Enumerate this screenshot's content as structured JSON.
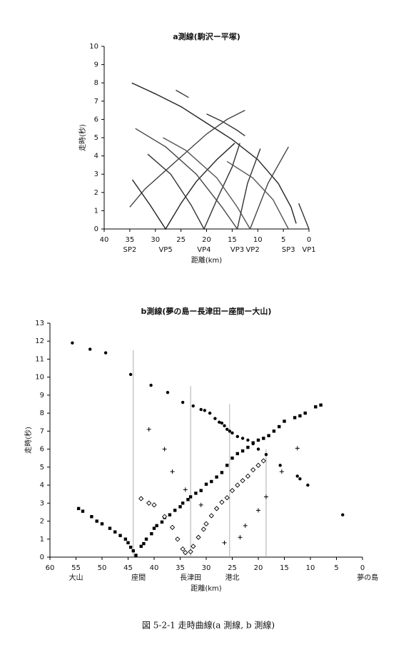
{
  "chart_data": [
    {
      "type": "line",
      "title": "a測線(駒沢ー平塚)",
      "x_label": "距離(km)",
      "y_label": "走時(秒)",
      "xlim": [
        40,
        0
      ],
      "xticks": [
        40,
        35,
        30,
        25,
        20,
        15,
        10,
        5,
        0
      ],
      "ylim": [
        0,
        10
      ],
      "yticks": [
        0,
        1,
        2,
        3,
        4,
        5,
        6,
        7,
        8,
        9,
        10
      ],
      "annotations": [
        {
          "text": "SP2",
          "x": 35
        },
        {
          "text": "VP5",
          "x": 28
        },
        {
          "text": "VP4",
          "x": 20.5
        },
        {
          "text": "VP3",
          "x": 14
        },
        {
          "text": "VP2",
          "x": 11
        },
        {
          "text": "SP3",
          "x": 4
        },
        {
          "text": "VP1",
          "x": 0
        }
      ],
      "series": [
        {
          "color": "#222",
          "x": [
            34.6,
            30,
            25,
            20,
            15,
            10,
            6,
            3.5,
            2.5
          ],
          "values": [
            8.0,
            7.4,
            6.7,
            5.8,
            4.9,
            3.8,
            2.5,
            1.2,
            0.3
          ]
        },
        {
          "color": "#333",
          "x": [
            26,
            23.5,
            null,
            20,
            17,
            14,
            12.5
          ],
          "values": [
            7.6,
            7.2,
            null,
            6.3,
            5.9,
            5.4,
            5.1
          ]
        },
        {
          "color": "#444",
          "x": [
            35,
            32,
            28,
            24,
            20,
            16,
            12.5
          ],
          "values": [
            1.2,
            2.2,
            3.2,
            4.2,
            5.2,
            6.0,
            6.5
          ]
        },
        {
          "color": "#222",
          "x": [
            34.5,
            31,
            28,
            25,
            22,
            18,
            14.5
          ],
          "values": [
            2.7,
            1.3,
            0,
            1.4,
            2.6,
            3.8,
            4.7
          ]
        },
        {
          "color": "#333",
          "x": [
            31.5,
            27,
            23,
            20.5,
            18,
            15,
            13.5
          ],
          "values": [
            4.1,
            3.0,
            1.3,
            0,
            1.6,
            3.4,
            4.7
          ]
        },
        {
          "color": "#444",
          "x": [
            33.9,
            28,
            22,
            17,
            14
          ],
          "values": [
            5.5,
            4.5,
            3.0,
            1.2,
            0
          ]
        },
        {
          "color": "#555",
          "x": [
            28.5,
            24,
            18,
            14,
            11.5
          ],
          "values": [
            5.0,
            4.3,
            2.8,
            1.2,
            0
          ]
        },
        {
          "color": "#333",
          "x": [
            14,
            12,
            9.5
          ],
          "values": [
            0,
            2.5,
            4.4
          ]
        },
        {
          "color": "#444",
          "x": [
            11.5,
            8,
            4
          ],
          "values": [
            0,
            2.5,
            4.5
          ]
        },
        {
          "color": "#555",
          "x": [
            16,
            11,
            7,
            4
          ],
          "values": [
            3.7,
            2.8,
            1.6,
            0
          ]
        },
        {
          "color": "#333",
          "x": [
            2,
            0
          ],
          "values": [
            1.4,
            0
          ]
        }
      ]
    },
    {
      "type": "scatter",
      "title": "b測線(夢の島ー長津田ー座間ー大山)",
      "x_label": "距離(km)",
      "y_label": "走時(秒)",
      "xlim": [
        60,
        0
      ],
      "xticks": [
        60,
        55,
        50,
        45,
        40,
        35,
        30,
        25,
        20,
        15,
        10,
        5,
        0
      ],
      "ylim": [
        0,
        13
      ],
      "yticks": [
        0,
        1,
        2,
        3,
        4,
        5,
        6,
        7,
        8,
        9,
        10,
        11,
        12,
        13
      ],
      "annotations": [
        {
          "text": "大山",
          "x": 55
        },
        {
          "text": "座間",
          "x": 43
        },
        {
          "text": "長津田",
          "x": 33
        },
        {
          "text": "港北",
          "x": 25
        },
        {
          "text": "夢の島",
          "x": -1
        }
      ],
      "reference_lines": [
        {
          "x": 44,
          "y": 11.5
        },
        {
          "x": 33,
          "y": 9.5
        },
        {
          "x": 25.5,
          "y": 8.5
        },
        {
          "x": 18.5,
          "y": 6
        }
      ],
      "series": [
        {
          "color": "#000",
          "marker": "circle",
          "x": [
            55.7,
            52.3,
            49.3,
            44.5,
            40.6,
            37.4,
            34.5,
            32.5,
            31,
            30.3,
            29.3,
            28.3,
            27.5,
            27,
            26.5,
            26,
            25.5,
            25,
            24,
            23,
            22,
            21,
            20,
            18.5,
            15.8,
            12.5,
            12,
            10.5,
            3.8
          ],
          "values": [
            11.9,
            11.55,
            11.35,
            10.15,
            9.55,
            9.15,
            8.6,
            8.4,
            8.2,
            8.15,
            8.0,
            7.7,
            7.5,
            7.45,
            7.3,
            7.1,
            7.0,
            6.9,
            6.7,
            6.6,
            6.5,
            6.3,
            6.0,
            5.7,
            5.1,
            4.5,
            4.35,
            4.0,
            2.35
          ]
        },
        {
          "color": "#000",
          "marker": "square",
          "x": [
            54.5,
            53.7,
            52,
            51,
            50,
            48.5,
            47.5,
            46.5,
            45.5,
            45,
            44.5,
            44,
            43.5,
            42.5,
            42,
            41.5,
            40.5,
            40,
            39.5,
            38.5,
            38,
            37,
            36,
            35,
            34.5,
            33.5,
            33,
            32,
            31,
            30,
            29,
            28,
            27,
            26,
            25,
            24,
            23,
            22,
            21,
            20,
            19,
            18,
            17,
            16,
            15,
            13,
            12,
            11,
            9,
            8
          ],
          "values": [
            2.7,
            2.55,
            2.25,
            2.0,
            1.85,
            1.6,
            1.4,
            1.2,
            1.0,
            0.8,
            0.55,
            0.35,
            0.1,
            0.6,
            0.75,
            1.0,
            1.3,
            1.6,
            1.75,
            1.95,
            2.2,
            2.35,
            2.6,
            2.8,
            3.0,
            3.2,
            3.35,
            3.55,
            3.7,
            4.05,
            4.2,
            4.45,
            4.7,
            5.1,
            5.5,
            5.75,
            5.9,
            6.1,
            6.35,
            6.5,
            6.6,
            6.75,
            7.0,
            7.25,
            7.55,
            7.75,
            7.85,
            8.0,
            8.35,
            8.45
          ]
        },
        {
          "color": "#000",
          "marker": "diamond",
          "x": [
            42.5,
            41,
            40,
            38,
            36.5,
            35.5,
            34.5,
            34,
            33,
            32.5,
            31.5,
            30.5,
            30,
            29,
            28,
            27,
            26,
            25,
            24,
            23,
            22,
            21,
            20,
            19
          ],
          "values": [
            3.25,
            3.0,
            2.9,
            2.25,
            1.65,
            1.0,
            0.45,
            0.25,
            0.3,
            0.6,
            1.1,
            1.55,
            1.85,
            2.3,
            2.7,
            3.05,
            3.3,
            3.7,
            4.0,
            4.25,
            4.5,
            4.85,
            5.1,
            5.35
          ]
        },
        {
          "color": "#000",
          "marker": "plus",
          "x": [
            41,
            38,
            36.5,
            34,
            31,
            26.5,
            23.5,
            22.5,
            20,
            18.5,
            15.5,
            12.5
          ],
          "values": [
            7.1,
            6.0,
            4.75,
            3.75,
            2.9,
            0.8,
            1.1,
            1.75,
            2.6,
            3.35,
            4.75,
            6.05
          ]
        }
      ]
    }
  ],
  "caption": "図 5-2-1 走時曲線(a 測線, b 測線)"
}
